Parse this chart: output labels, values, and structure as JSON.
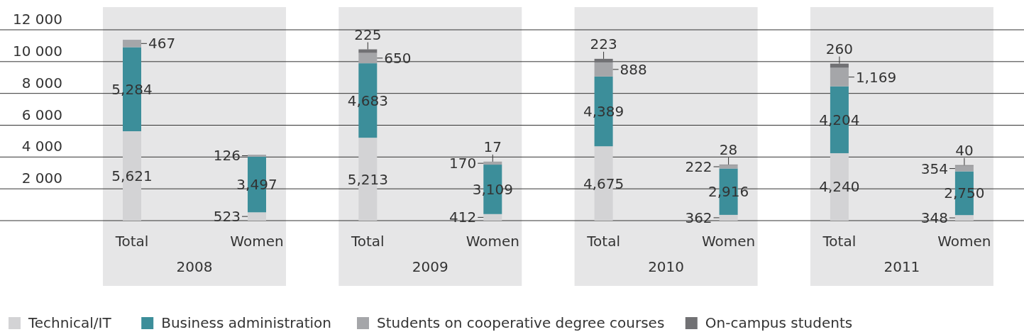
{
  "chart_data": {
    "type": "bar",
    "stacked": true,
    "categories": [
      "Total",
      "Women",
      "Total",
      "Women",
      "Total",
      "Women",
      "Total",
      "Women"
    ],
    "annotations": [
      "2008",
      "2009",
      "2010",
      "2011"
    ],
    "series": [
      {
        "name": "Technical/IT",
        "color": "#d3d3d5",
        "values": [
          5621,
          523,
          5213,
          412,
          4675,
          362,
          4240,
          348
        ],
        "value_labels": [
          "5,621",
          "523",
          "5,213",
          "412",
          "4,675",
          "362",
          "4,240",
          "348"
        ]
      },
      {
        "name": "Business administration",
        "color": "#3c8e9a",
        "values": [
          5284,
          3497,
          4683,
          3109,
          4389,
          2916,
          4204,
          2750
        ],
        "value_labels": [
          "5,284",
          "3,497",
          "4,683",
          "3,109",
          "4,389",
          "2,916",
          "4,204",
          "2,750"
        ]
      },
      {
        "name": "Students on cooperative degree courses",
        "color": "#a5a6a9",
        "values": [
          467,
          126,
          650,
          170,
          888,
          222,
          1169,
          354
        ],
        "value_labels": [
          "467",
          "126",
          "650",
          "170",
          "888",
          "222",
          "1,169",
          "354"
        ]
      },
      {
        "name": "On-campus students",
        "color": "#717174",
        "values": [
          null,
          null,
          225,
          17,
          223,
          28,
          260,
          40
        ],
        "value_labels": [
          null,
          null,
          "225",
          "17",
          "223",
          "28",
          "260",
          "40"
        ]
      }
    ],
    "ylim": [
      0,
      12000
    ],
    "yticks": [
      {
        "value": 0,
        "label": null
      },
      {
        "value": 2000,
        "label": "2 000"
      },
      {
        "value": 4000,
        "label": "4 000"
      },
      {
        "value": 6000,
        "label": "6 000"
      },
      {
        "value": 8000,
        "label": "8 000"
      },
      {
        "value": 10000,
        "label": "10 000"
      },
      {
        "value": 12000,
        "label": "12 000"
      }
    ],
    "grid": "y",
    "legend": "bottom"
  }
}
